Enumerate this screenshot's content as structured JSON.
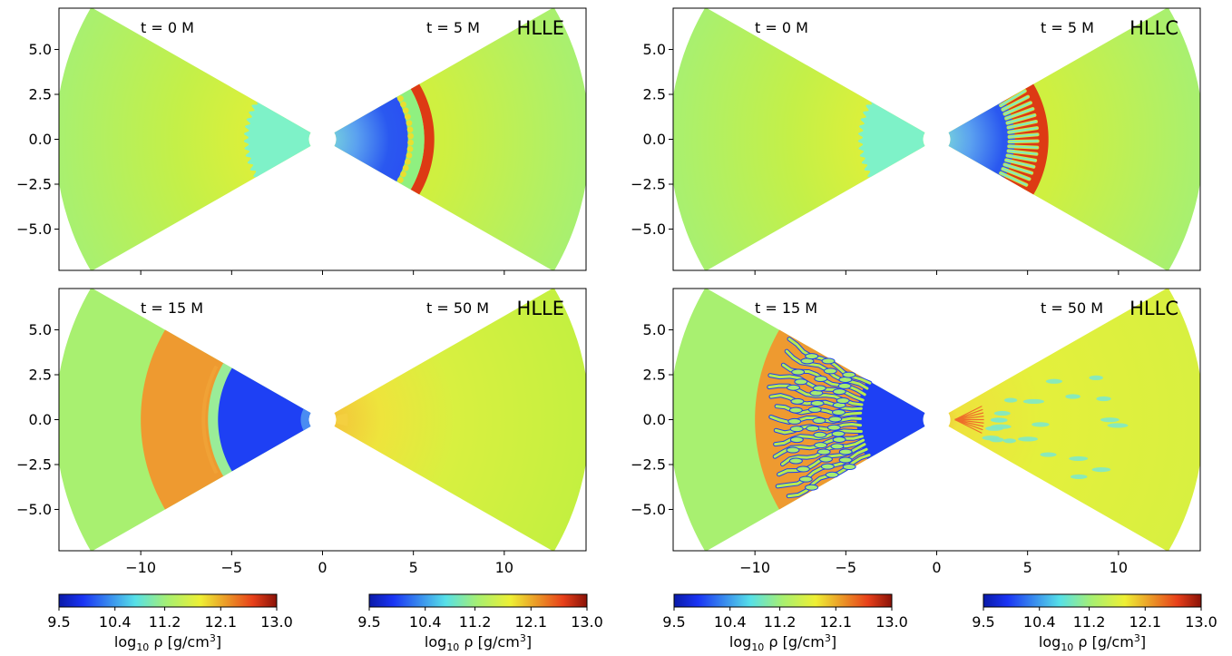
{
  "chart_data": {
    "type": "heatmap",
    "colormap": "jet",
    "x_ticks": [
      -10,
      -5,
      0,
      5,
      10
    ],
    "y_ticks": [
      5.0,
      2.5,
      0.0,
      -2.5,
      -5.0
    ],
    "xlim": [
      -14.5,
      14.5
    ],
    "ylim": [
      -7.3,
      7.3
    ],
    "panels": [
      {
        "solver": "HLLE",
        "left_time": "t = 0 M",
        "right_time": "t = 5 M",
        "left_state": "initial",
        "right_state": "early_smooth"
      },
      {
        "solver": "HLLC",
        "left_time": "t = 0 M",
        "right_time": "t = 5 M",
        "left_state": "initial",
        "right_state": "early_fingers"
      },
      {
        "solver": "HLLE",
        "left_time": "t = 15 M",
        "right_time": "t = 50 M",
        "left_state": "mid_smooth",
        "right_state": "late_smooth"
      },
      {
        "solver": "HLLC",
        "left_time": "t = 15 M",
        "right_time": "t = 50 M",
        "left_state": "mid_fingers",
        "right_state": "late_fingers"
      }
    ],
    "colorbars": [
      {
        "min": 9.5,
        "max": 13.0,
        "ticks": [
          "9.5",
          "10.4",
          "11.2",
          "12.1",
          "13.0"
        ],
        "label_prefix": "log",
        "label_sub": "10",
        "label_body": " ρ [g/cm",
        "label_sup": "3",
        "label_suffix": "]"
      },
      {
        "min": 9.5,
        "max": 13.0,
        "ticks": [
          "9.5",
          "10.4",
          "11.2",
          "12.1",
          "13.0"
        ],
        "label_prefix": "log",
        "label_sub": "10",
        "label_body": " ρ [g/cm",
        "label_sup": "3",
        "label_suffix": "]"
      },
      {
        "min": 9.5,
        "max": 13.0,
        "ticks": [
          "9.5",
          "10.4",
          "11.2",
          "12.1",
          "13.0"
        ],
        "label_prefix": "log",
        "label_sub": "10",
        "label_body": " ρ [g/cm",
        "label_sup": "3",
        "label_suffix": "]"
      },
      {
        "min": 9.5,
        "max": 13.0,
        "ticks": [
          "9.5",
          "10.4",
          "11.2",
          "12.1",
          "13.0"
        ],
        "label_prefix": "log",
        "label_sub": "10",
        "label_body": " ρ [g/cm",
        "label_sup": "3",
        "label_suffix": "]"
      }
    ],
    "colors": {
      "background_gas": "#a8f070",
      "inner_gas": "#c8f040",
      "yellow_gas": "#e6f038",
      "cyan_core": "#7ef2c8",
      "blue_void": "#1e40f4",
      "shell_red": "#dd3a14",
      "shell_orange": "#ee9a30",
      "finger_cyan": "#7ee8c8"
    }
  }
}
